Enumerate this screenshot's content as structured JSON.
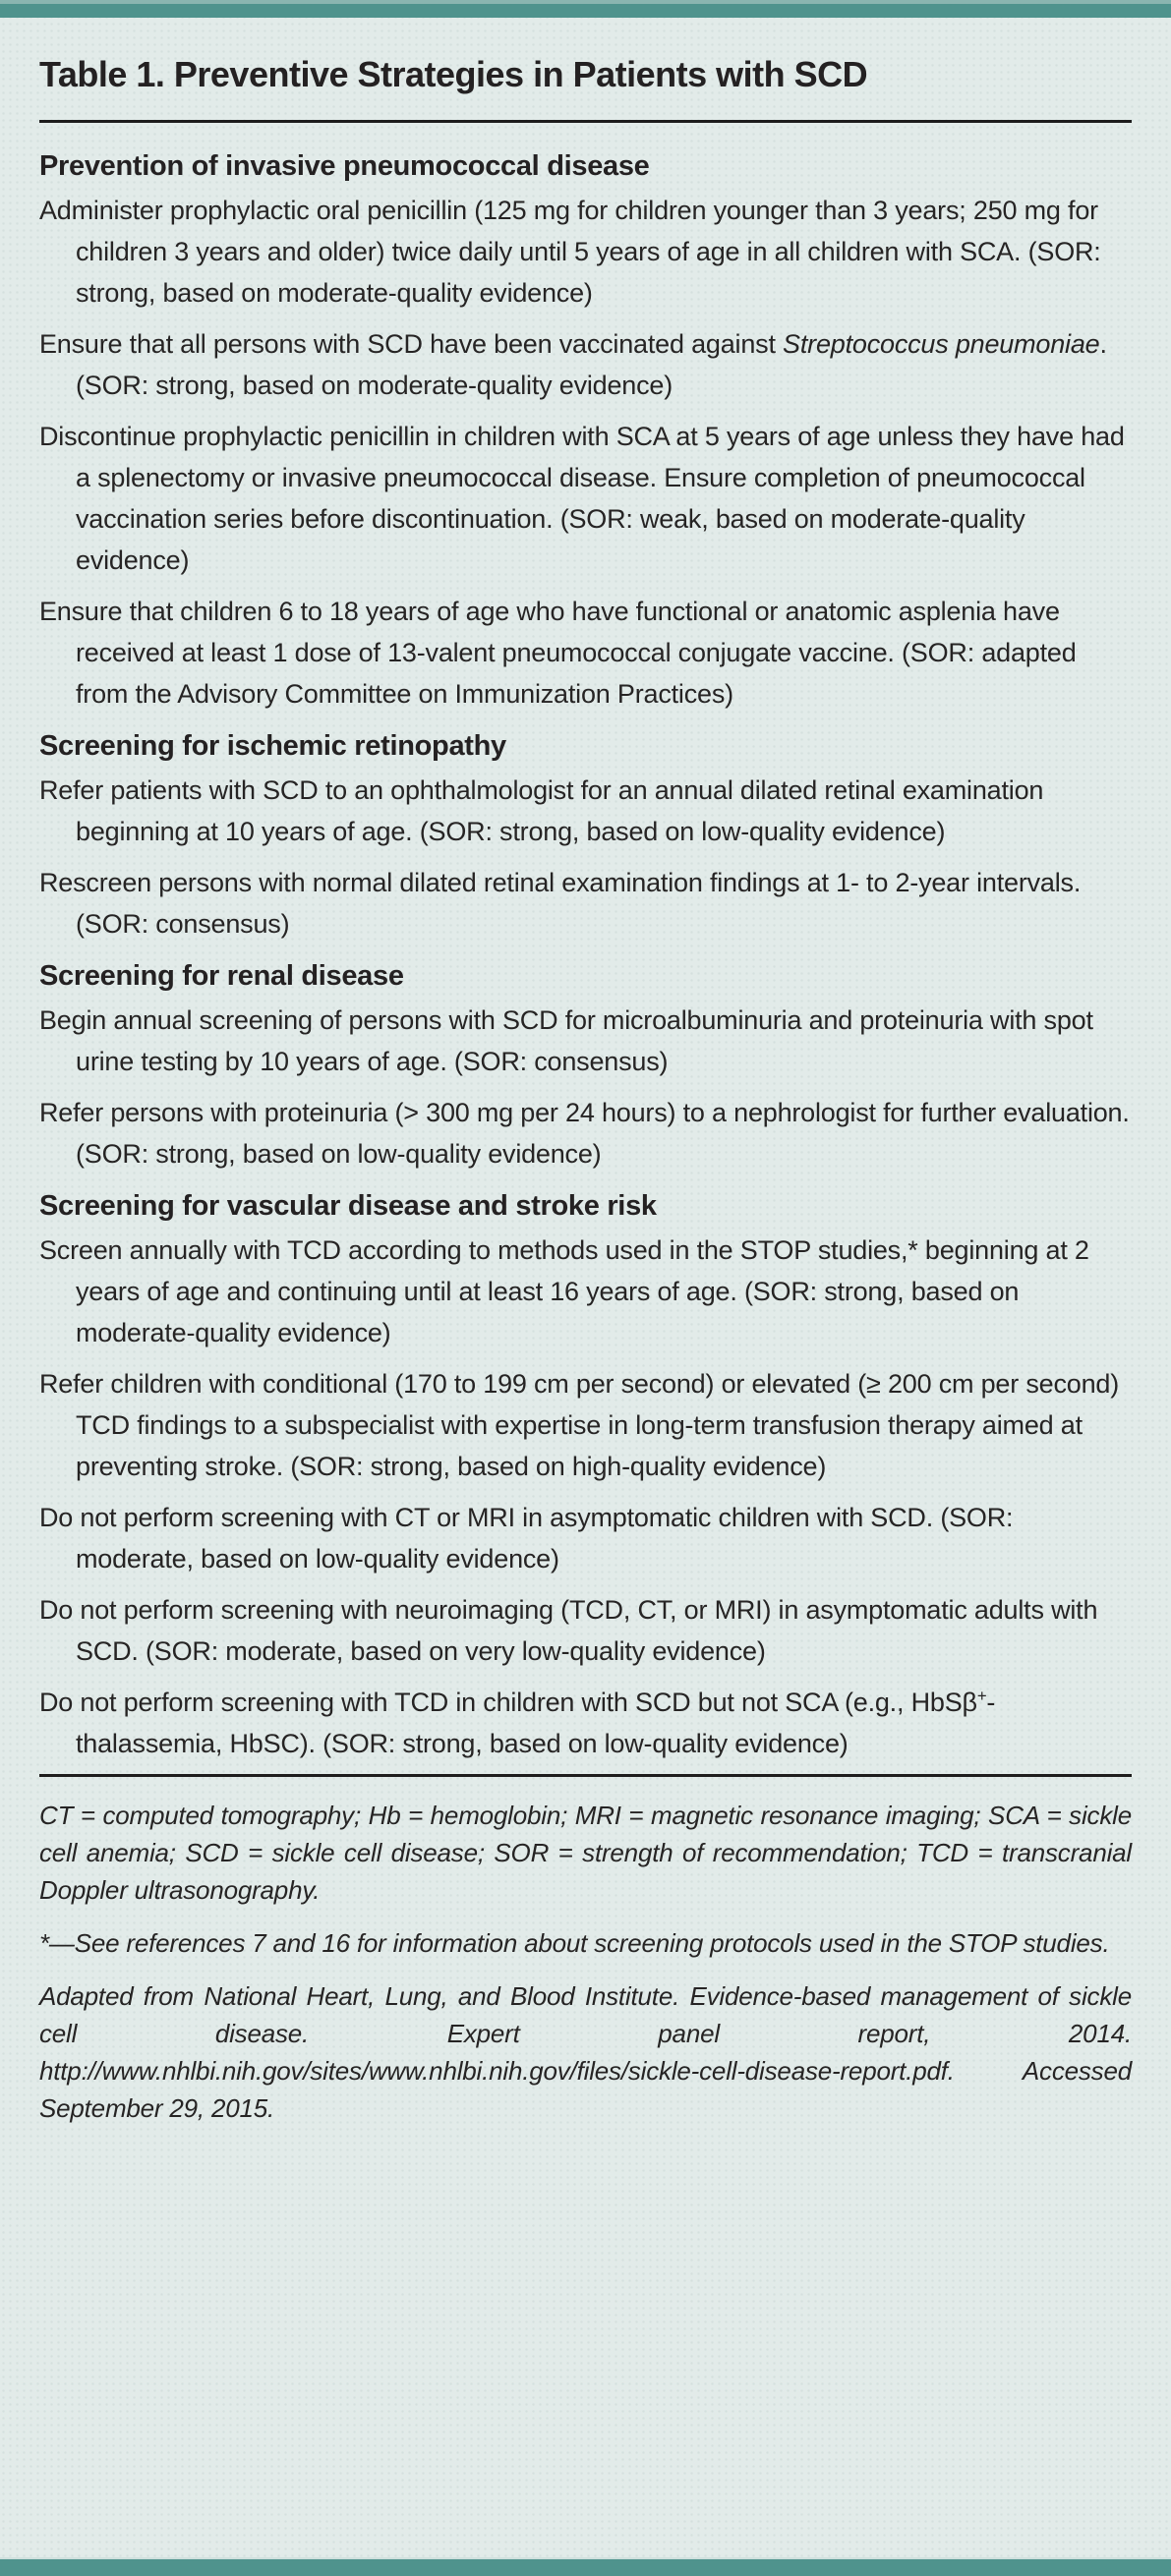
{
  "table": {
    "title": "Table 1. Preventive Strategies in Patients with SCD",
    "sections": [
      {
        "heading": "Prevention of invasive pneumococcal disease",
        "items": [
          [
            {
              "t": "Administer prophylactic oral penicillin (125 mg for children younger than 3 years; 250 mg for children 3 years and older) twice daily until 5 years of age in all children with SCA. (SOR: strong, based on moderate-quality evidence)"
            }
          ],
          [
            {
              "t": "Ensure that all persons with SCD have been vaccinated against "
            },
            {
              "t": "Streptococcus pneumoniae",
              "i": true
            },
            {
              "t": ". (SOR: strong, based on moderate-quality evidence)"
            }
          ],
          [
            {
              "t": "Discontinue prophylactic penicillin in children with SCA at 5 years of age unless they have had a splenectomy or invasive pneumococcal disease. Ensure completion of pneumococcal vaccination series before discontinuation. (SOR: weak, based on moderate-quality evidence)"
            }
          ],
          [
            {
              "t": "Ensure that children 6 to 18 years of age who have functional or anatomic asplenia have received at least 1 dose of 13-valent pneumococcal conjugate vaccine. (SOR: adapted from the Advisory Committee on Immunization Practices)"
            }
          ]
        ]
      },
      {
        "heading": "Screening for ischemic retinopathy",
        "items": [
          [
            {
              "t": "Refer patients with SCD to an ophthalmologist for an annual dilated retinal examination beginning at 10 years of age. (SOR: strong, based on low-quality evidence)"
            }
          ],
          [
            {
              "t": "Rescreen persons with normal dilated retinal examination findings at 1- to 2-year intervals. (SOR: consensus)"
            }
          ]
        ]
      },
      {
        "heading": "Screening for renal disease",
        "items": [
          [
            {
              "t": "Begin annual screening of persons with SCD for microalbuminuria and proteinuria with spot urine testing by 10 years of age. (SOR: consensus)"
            }
          ],
          [
            {
              "t": "Refer persons with proteinuria (> 300 mg per 24 hours) to a nephrologist for further evaluation. (SOR: strong, based on low-quality evidence)"
            }
          ]
        ]
      },
      {
        "heading": "Screening for vascular disease and stroke risk",
        "items": [
          [
            {
              "t": "Screen annually with TCD according to methods used in the STOP studies,* beginning at 2 years of age and continuing until at least 16 years of age. (SOR: strong, based on moderate-quality evidence)"
            }
          ],
          [
            {
              "t": "Refer children with conditional (170 to 199 cm per second) or elevated (≥ 200 cm per second) TCD findings to a subspecialist with expertise in long-term transfusion therapy aimed at preventing stroke. (SOR: strong, based on high-quality evidence)"
            }
          ],
          [
            {
              "t": "Do not perform screening with CT or MRI in asymptomatic children with SCD. (SOR: moderate, based on low-quality evidence)"
            }
          ],
          [
            {
              "t": "Do not perform screening with neuroimaging (TCD, CT, or MRI) in asymptomatic adults with SCD. (SOR: moderate, based on very low-quality evidence)"
            }
          ],
          [
            {
              "t": "Do not perform screening with TCD in children with SCD but not SCA (e.g., HbSβ"
            },
            {
              "t": "+",
              "sup": true
            },
            {
              "t": "-thalassemia, HbSC). (SOR: strong, based on low-quality evidence)"
            }
          ]
        ]
      }
    ],
    "footnotes": [
      "CT = computed tomography; Hb = hemoglobin; MRI = magnetic resonance imaging; SCA = sickle cell anemia; SCD = sickle cell disease; SOR = strength of recommendation; TCD = transcranial Doppler ultrasonography.",
      "*—See references 7 and 16 for information about screening protocols used in the STOP studies.",
      "Adapted from National Heart, Lung, and Blood Institute. Evidence-based management of sickle cell disease. Expert panel report, 2014. http://www.nhlbi.nih.gov/sites/www.nhlbi.nih.gov/files/sickle-cell-disease-report.pdf. Accessed September 29, 2015."
    ],
    "colors": {
      "accent_bar": "#4f938d",
      "accent_bar_light": "#8ab5b0",
      "background": "#e2ebe9",
      "text": "#262424",
      "rule": "#1d1c1c"
    }
  }
}
